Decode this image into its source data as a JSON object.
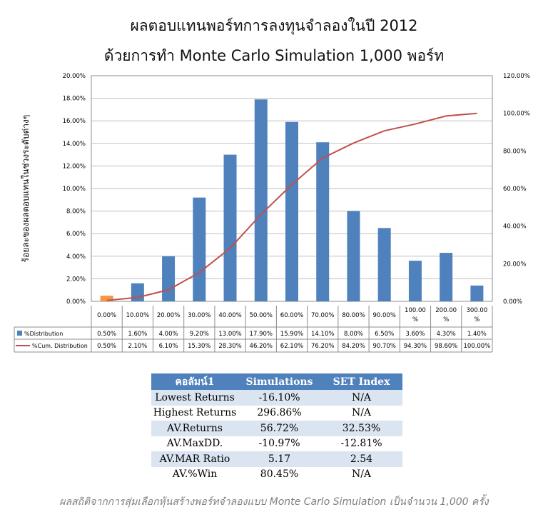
{
  "title_line1": "ผลตอบแทนพอร์ทการลงทุนจำลองในปี 2012",
  "title_line2": "ด้วยการทำ Monte Carlo Simulation 1,000 พอร์ท",
  "chart_data": {
    "type": "bar",
    "ylabel": "ร้อยละของผลตอบแทนในช่วงระดับต่างๆ",
    "categories": [
      "0.00%",
      "10.00%",
      "20.00%",
      "30.00%",
      "40.00%",
      "50.00%",
      "60.00%",
      "70.00%",
      "80.00%",
      "90.00%",
      "100.00 %",
      "200.00 %",
      "300.00 %"
    ],
    "y_ticks": [
      "0.00%",
      "2.00%",
      "4.00%",
      "6.00%",
      "8.00%",
      "10.00%",
      "12.00%",
      "14.00%",
      "16.00%",
      "18.00%",
      "20.00%"
    ],
    "y2_ticks": [
      "0.00%",
      "20.00%",
      "40.00%",
      "60.00%",
      "80.00%",
      "100.00%",
      "120.00%"
    ],
    "ylim": [
      0,
      20
    ],
    "y2lim": [
      0,
      120
    ],
    "grid": true,
    "series": [
      {
        "name": "%Distribution",
        "type": "bar",
        "color": "#4f81bd",
        "highlight_first_color": "#f79646",
        "values": [
          0.5,
          1.6,
          4.0,
          9.2,
          13.0,
          17.9,
          15.9,
          14.1,
          8.0,
          6.5,
          3.6,
          4.3,
          1.4
        ],
        "labels": [
          "0.50%",
          "1.60%",
          "4.00%",
          "9.20%",
          "13.00%",
          "17.90%",
          "15.90%",
          "14.10%",
          "8.00%",
          "6.50%",
          "3.60%",
          "4.30%",
          "1.40%"
        ]
      },
      {
        "name": "%Cum. Distribution",
        "type": "line",
        "axis": "secondary",
        "color": "#c0504d",
        "values": [
          0.5,
          2.1,
          6.1,
          15.3,
          28.3,
          46.2,
          62.1,
          76.2,
          84.2,
          90.7,
          94.3,
          98.6,
          100.0
        ],
        "labels": [
          "0.50%",
          "2.10%",
          "6.10%",
          "15.30%",
          "28.30%",
          "46.20%",
          "62.10%",
          "76.20%",
          "84.20%",
          "90.70%",
          "94.30%",
          "98.60%",
          "100.00%"
        ]
      }
    ]
  },
  "stats_table": {
    "headers": [
      "คอลัมน์1",
      "Simulations",
      "SET Index"
    ],
    "rows": [
      [
        "Lowest Returns",
        "-16.10%",
        "N/A"
      ],
      [
        "Highest Returns",
        "296.86%",
        "N/A"
      ],
      [
        "AV.Returns",
        "56.72%",
        "32.53%"
      ],
      [
        "AV.MaxDD.",
        "-10.97%",
        "-12.81%"
      ],
      [
        "AV.MAR Ratio",
        "5.17",
        "2.54"
      ],
      [
        "AV.%Win",
        "80.45%",
        "N/A"
      ]
    ]
  },
  "caption": "ผลสถิติจากการสุ่มเลือกหุ้นสร้างพอร์ทจำลองแบบ Monte Carlo Simulation เป็นจำนวน 1,000 ครั้ง"
}
